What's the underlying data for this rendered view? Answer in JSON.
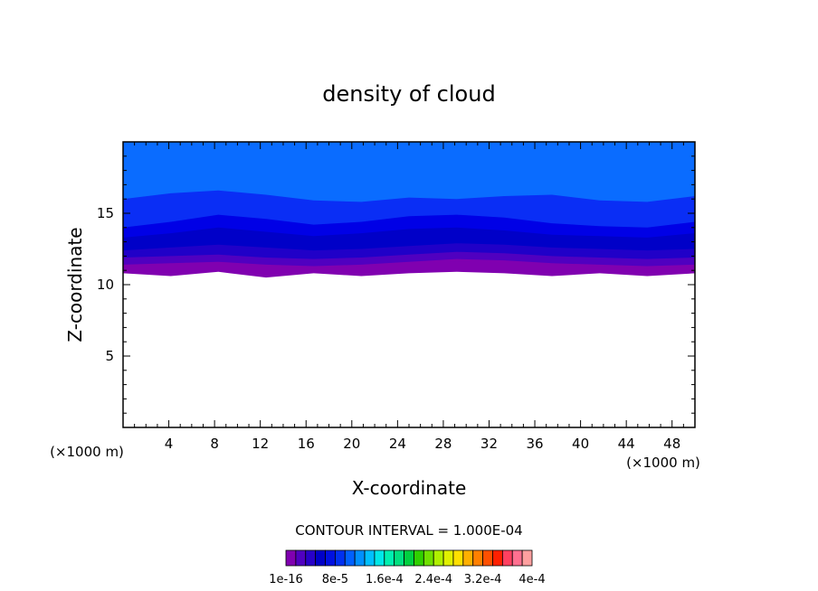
{
  "chart_data": {
    "type": "heatmap",
    "title": "density of cloud",
    "xlabel": "X-coordinate",
    "ylabel": "Z-coordinate",
    "x_unit": "(×1000 m)",
    "y_unit": "(×1000 m)",
    "xlim": [
      0,
      50
    ],
    "ylim": [
      0,
      20
    ],
    "x_ticks": [
      4,
      8,
      12,
      16,
      20,
      24,
      28,
      32,
      36,
      40,
      44,
      48
    ],
    "y_ticks": [
      5,
      10,
      15
    ],
    "grid": false,
    "contour_interval_label": "CONTOUR INTERVAL = 1.000E-04",
    "colorbar_labels": [
      "1e-16",
      "8e-5",
      "1.6e-4",
      "2.4e-4",
      "3.2e-4",
      "4e-4"
    ],
    "colorbar_colors": [
      "#8000b0",
      "#5000c0",
      "#2800c8",
      "#0000c8",
      "#0010e0",
      "#0030f0",
      "#0060ff",
      "#0090ff",
      "#00c0ff",
      "#00e8e8",
      "#00f0b0",
      "#00e080",
      "#00d040",
      "#30d000",
      "#70e000",
      "#b0f000",
      "#e0f000",
      "#ffe000",
      "#ffb000",
      "#ff8000",
      "#ff5000",
      "#ff2000",
      "#ff4060",
      "#ff7090",
      "#ffa0a0"
    ],
    "cloud_layers": [
      {
        "level": "lowest",
        "color": "#8000b0",
        "base_z": [
          10.8,
          10.6,
          10.9,
          10.5,
          10.8,
          10.6,
          10.8,
          10.9,
          10.8,
          10.6,
          10.8,
          10.6,
          10.8
        ]
      },
      {
        "level": "2",
        "color": "#5000c0",
        "base_z": [
          11.4,
          11.5,
          11.6,
          11.4,
          11.3,
          11.4,
          11.6,
          11.8,
          11.7,
          11.5,
          11.4,
          11.3,
          11.4
        ]
      },
      {
        "level": "3",
        "color": "#2000c8",
        "base_z": [
          11.9,
          12.0,
          12.1,
          11.9,
          11.8,
          11.9,
          12.1,
          12.3,
          12.2,
          12.0,
          11.9,
          11.8,
          11.9
        ]
      },
      {
        "level": "4",
        "color": "#0000c8",
        "base_z": [
          12.4,
          12.6,
          12.8,
          12.6,
          12.4,
          12.5,
          12.7,
          12.9,
          12.8,
          12.6,
          12.5,
          12.4,
          12.5
        ]
      },
      {
        "level": "5",
        "color": "#0000e6",
        "base_z": [
          13.3,
          13.6,
          14.0,
          13.7,
          13.4,
          13.6,
          13.9,
          14.0,
          13.8,
          13.5,
          13.4,
          13.3,
          13.6
        ]
      },
      {
        "level": "6",
        "color": "#0a2ef5",
        "base_z": [
          14.0,
          14.4,
          14.9,
          14.6,
          14.2,
          14.4,
          14.8,
          14.9,
          14.7,
          14.3,
          14.1,
          14.0,
          14.4
        ]
      },
      {
        "level": "top",
        "color": "#0a6cff",
        "base_z": [
          16.0,
          16.4,
          16.6,
          16.3,
          15.9,
          15.8,
          16.1,
          16.0,
          16.2,
          16.3,
          15.9,
          15.8,
          16.2
        ]
      }
    ],
    "cloud_top_z": 20
  }
}
